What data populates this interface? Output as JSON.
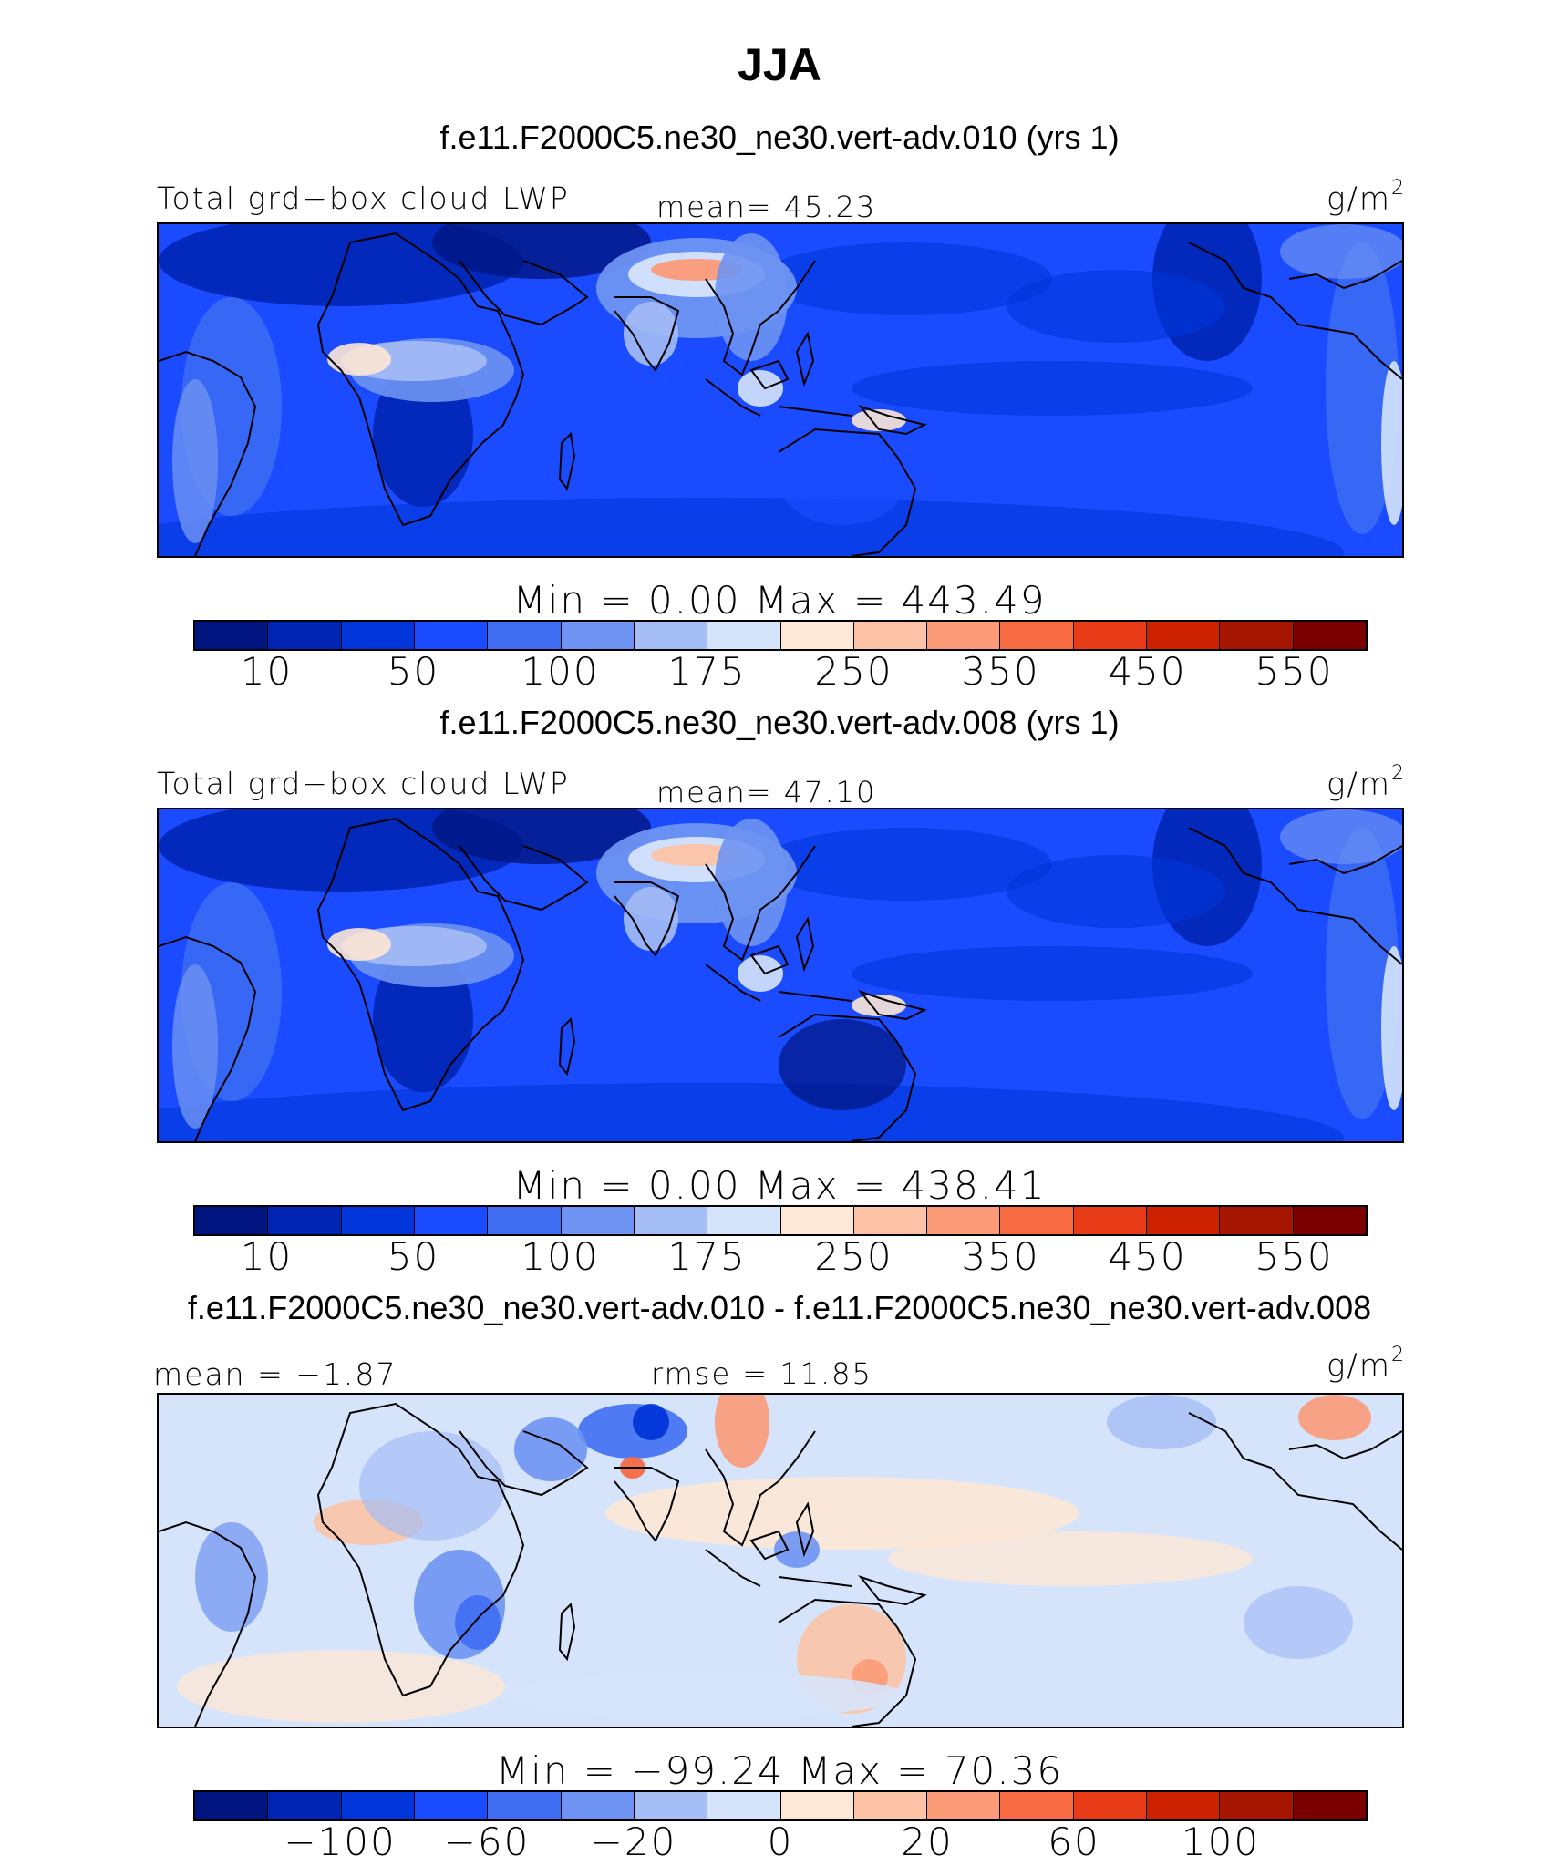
{
  "figure": {
    "title": "JJA"
  },
  "colorbar": {
    "colors": [
      "#00157f",
      "#0025b5",
      "#0035d9",
      "#1a4bff",
      "#3f6ef2",
      "#6e93f2",
      "#a5bdf5",
      "#d6e4fb",
      "#fde7d6",
      "#fcc3a6",
      "#fb9a77",
      "#f76a42",
      "#e83b17",
      "#cc2200",
      "#a61500",
      "#7a0000"
    ]
  },
  "panels": [
    {
      "run_title": "f.e11.F2000C5.ne30_ne30.vert-adv.010 (yrs 1)",
      "left_label": "Total grd−box cloud LWP",
      "center_label": "mean=  45.23",
      "unit": "g/m",
      "unit_exp": "2",
      "minmax": "Min =    0.00 Max = 443.49",
      "ticks": [
        "10",
        "50",
        "100",
        "175",
        "250",
        "350",
        "450",
        "550"
      ],
      "kind": "abs"
    },
    {
      "run_title": "f.e11.F2000C5.ne30_ne30.vert-adv.008 (yrs 1)",
      "left_label": "Total grd−box cloud LWP",
      "center_label": "mean=  47.10",
      "unit": "g/m",
      "unit_exp": "2",
      "minmax": "Min =    0.00 Max = 438.41",
      "ticks": [
        "10",
        "50",
        "100",
        "175",
        "250",
        "350",
        "450",
        "550"
      ],
      "kind": "abs"
    },
    {
      "run_title": "f.e11.F2000C5.ne30_ne30.vert-adv.010 - f.e11.F2000C5.ne30_ne30.vert-adv.008",
      "left_label": "mean = −1.87",
      "center_label": "rmse =  11.85",
      "unit": "g/m",
      "unit_exp": "2",
      "minmax": "Min = −99.24 Max =  70.36",
      "ticks": [
        "−100",
        "−60",
        "−20",
        "0",
        "20",
        "60",
        "100"
      ],
      "kind": "diff"
    }
  ]
}
